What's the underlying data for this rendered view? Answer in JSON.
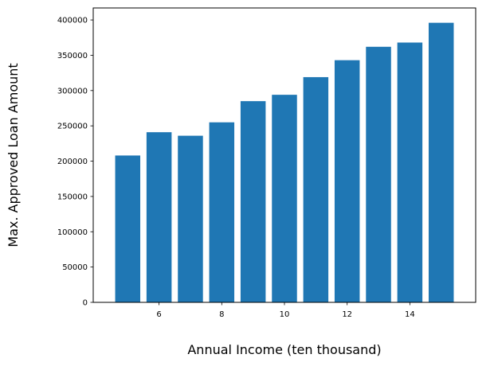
{
  "chart_data": {
    "type": "bar",
    "x": [
      5,
      6,
      7,
      8,
      9,
      10,
      11,
      12,
      13,
      14,
      15
    ],
    "values": [
      208000,
      241000,
      236000,
      255000,
      285000,
      294000,
      319000,
      343000,
      362000,
      368000,
      396000
    ],
    "xlabel": "Annual Income (ten thousand)",
    "ylabel": "Max. Approved Loan Amount",
    "xlim": [
      3.9,
      16.1
    ],
    "ylim": [
      0,
      417000
    ],
    "xticks": [
      6,
      8,
      10,
      12,
      14
    ],
    "yticks": [
      0,
      50000,
      100000,
      150000,
      200000,
      250000,
      300000,
      350000,
      400000
    ],
    "bar_color": "#1f77b4",
    "grid": false,
    "legend": false
  }
}
